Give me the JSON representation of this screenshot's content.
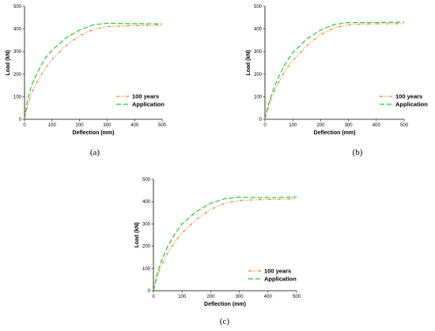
{
  "colors": {
    "series_100_years": "#f57c1f",
    "series_application": "#1fcf1f",
    "axis": "#000000"
  },
  "chart_data": [
    {
      "type": "line",
      "caption": "(a)",
      "xlabel": "Deflection (mm)",
      "ylabel": "Load (kN)",
      "xlim": [
        0,
        500
      ],
      "ylim": [
        0,
        500
      ],
      "xticks": [
        0,
        100,
        200,
        300,
        400,
        500
      ],
      "yticks": [
        0,
        100,
        200,
        300,
        400,
        500
      ],
      "legend_position": "center-right",
      "series": [
        {
          "name": "100 years",
          "style": "dash-dot-dot",
          "x": [
            0,
            10,
            25,
            50,
            75,
            100,
            150,
            200,
            250,
            300,
            350,
            400,
            450,
            500
          ],
          "y": [
            0,
            55,
            115,
            175,
            225,
            265,
            325,
            370,
            398,
            410,
            413,
            415,
            416,
            417
          ]
        },
        {
          "name": "Application",
          "style": "dashed",
          "x": [
            0,
            10,
            25,
            50,
            75,
            100,
            150,
            200,
            250,
            300,
            350,
            400,
            450,
            500
          ],
          "y": [
            0,
            80,
            150,
            215,
            270,
            305,
            360,
            395,
            418,
            425,
            424,
            423,
            423,
            422
          ]
        }
      ]
    },
    {
      "type": "line",
      "caption": "(b)",
      "xlabel": "Deflection (mm)",
      "ylabel": "Load (kN)",
      "xlim": [
        0,
        500
      ],
      "ylim": [
        0,
        500
      ],
      "xticks": [
        0,
        100,
        200,
        300,
        400,
        500
      ],
      "yticks": [
        0,
        100,
        200,
        300,
        400,
        500
      ],
      "legend_position": "center-right",
      "series": [
        {
          "name": "100 years",
          "style": "dash-dot-dot",
          "x": [
            0,
            10,
            25,
            50,
            75,
            100,
            150,
            200,
            250,
            300,
            350,
            400,
            450,
            500
          ],
          "y": [
            0,
            45,
            100,
            165,
            220,
            260,
            325,
            375,
            405,
            418,
            421,
            422,
            423,
            423
          ]
        },
        {
          "name": "Application",
          "style": "dashed",
          "x": [
            0,
            10,
            25,
            50,
            75,
            100,
            150,
            200,
            250,
            300,
            350,
            400,
            450,
            500
          ],
          "y": [
            0,
            55,
            115,
            190,
            250,
            295,
            355,
            395,
            420,
            428,
            428,
            428,
            429,
            430
          ]
        }
      ]
    },
    {
      "type": "line",
      "caption": "(c)",
      "xlabel": "Deflection (mm)",
      "ylabel": "Load (kN)",
      "xlim": [
        0,
        500
      ],
      "ylim": [
        0,
        500
      ],
      "xticks": [
        0,
        100,
        200,
        300,
        400,
        500
      ],
      "yticks": [
        0,
        100,
        200,
        300,
        400,
        500
      ],
      "legend_position": "bottom-right",
      "series": [
        {
          "name": "100 years",
          "style": "dash-dot-dot",
          "x": [
            0,
            10,
            25,
            50,
            75,
            100,
            150,
            200,
            250,
            300,
            350,
            400,
            450,
            500
          ],
          "y": [
            0,
            50,
            105,
            170,
            220,
            260,
            320,
            365,
            393,
            405,
            408,
            410,
            411,
            413
          ]
        },
        {
          "name": "Application",
          "style": "dashed",
          "x": [
            0,
            10,
            25,
            50,
            75,
            100,
            150,
            200,
            250,
            300,
            350,
            400,
            450,
            500
          ],
          "y": [
            0,
            60,
            125,
            200,
            255,
            300,
            355,
            393,
            413,
            420,
            418,
            418,
            419,
            421
          ]
        }
      ]
    }
  ]
}
